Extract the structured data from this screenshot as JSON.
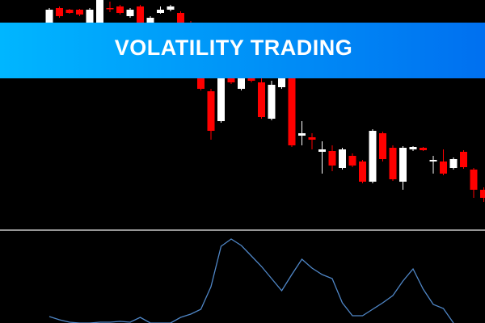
{
  "banner": {
    "title": "VOLATILITY TRADING"
  },
  "chart_data": [
    {
      "type": "candlestick",
      "open": [
        272,
        290,
        288,
        288,
        272,
        270,
        290,
        292,
        280,
        292,
        272,
        284,
        288,
        284,
        272,
        215,
        187,
        150,
        210,
        190,
        203,
        198,
        153,
        192,
        215,
        132,
        130,
        112,
        113,
        92,
        107,
        100,
        75,
        135,
        117,
        75,
        115,
        117,
        100,
        100,
        92,
        112,
        90,
        65
      ],
      "high": [
        290,
        292,
        289,
        289,
        290,
        300,
        298,
        294,
        290,
        294,
        280,
        292,
        294,
        286,
        274,
        225,
        190,
        215,
        215,
        214,
        206,
        205,
        200,
        215,
        218,
        150,
        135,
        125,
        120,
        117,
        110,
        102,
        140,
        137,
        120,
        119,
        119,
        118,
        107,
        115,
        105,
        114,
        92,
        68
      ],
      "low": [
        268,
        278,
        283,
        280,
        270,
        268,
        285,
        282,
        278,
        268,
        270,
        283,
        286,
        270,
        235,
        188,
        127,
        148,
        196,
        188,
        198,
        153,
        151,
        190,
        118,
        120,
        115,
        85,
        88,
        90,
        93,
        73,
        73,
        100,
        76,
        65,
        113,
        113,
        85,
        83,
        90,
        91,
        55,
        50
      ],
      "close": [
        288,
        280,
        284,
        282,
        288,
        300,
        289,
        284,
        288,
        270,
        278,
        288,
        292,
        272,
        240,
        190,
        138,
        205,
        198,
        210,
        200,
        155,
        195,
        210,
        120,
        135,
        127,
        115,
        95,
        115,
        95,
        75,
        138,
        103,
        78,
        117,
        118,
        114,
        102,
        85,
        103,
        93,
        65,
        55
      ],
      "up_color": "#ffffff",
      "down_color": "#ff0000",
      "ylim": [
        15,
        300
      ]
    },
    {
      "type": "line",
      "values": [
        8,
        4,
        1,
        0,
        0,
        1,
        1,
        2,
        1,
        7,
        0,
        0,
        0,
        7,
        11,
        17,
        45,
        95,
        104,
        96,
        83,
        70,
        55,
        40,
        60,
        79,
        68,
        60,
        55,
        25,
        9,
        9,
        17,
        25,
        34,
        52,
        67,
        42,
        23,
        18,
        0,
        null,
        null,
        null
      ],
      "color": "#4f86c6",
      "ylim": [
        0,
        115
      ]
    }
  ]
}
